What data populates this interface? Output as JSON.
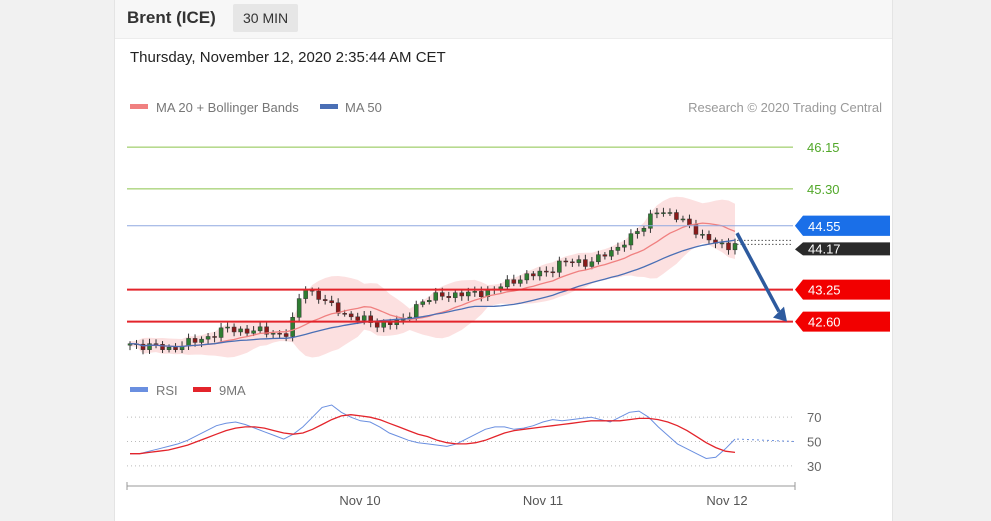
{
  "header": {
    "instrument": "Brent (ICE)",
    "timeframe": "30 MIN"
  },
  "datetime": "Thursday, November 12, 2020 2:35:44 AM CET",
  "legend": {
    "ma20": "MA 20 + Bollinger Bands",
    "ma50": "MA 50",
    "credit": "Research © 2020 Trading Central"
  },
  "colors": {
    "ma20": "#f08080",
    "ma50": "#4a6fb5",
    "bands": "#fbd5d5",
    "resistance": "#8bc34a",
    "resistance_text": "#52a82a",
    "pivot": "#8fa8e0",
    "pivot_tag": "#1a6fe8",
    "support": "#e3242b",
    "support_tag": "#f20000",
    "last_tag": "#2a2a2a",
    "arrow": "#2d5a9e",
    "rsi": "#6a8fe0",
    "rsi_ma": "#e3242b"
  },
  "chart_data": [
    {
      "type": "candlestick",
      "x_axis": [
        "Nov 10",
        "Nov 11",
        "Nov 12"
      ],
      "ylim": [
        41.9,
        46.6
      ],
      "levels": [
        {
          "value": 46.15,
          "label": "46.15",
          "kind": "resistance"
        },
        {
          "value": 45.3,
          "label": "45.30",
          "kind": "resistance"
        },
        {
          "value": 44.55,
          "label": "44.55",
          "kind": "pivot"
        },
        {
          "value": 43.25,
          "label": "43.25",
          "kind": "support"
        },
        {
          "value": 42.6,
          "label": "42.60",
          "kind": "support"
        }
      ],
      "last_price": {
        "value": 44.17,
        "label": "44.17"
      },
      "arrow": {
        "from": 44.4,
        "to": 42.6,
        "direction": "down"
      },
      "series": [
        {
          "name": "MA 20 + Bollinger Bands",
          "kind": "ma20"
        },
        {
          "name": "MA 50",
          "kind": "ma50"
        }
      ],
      "close_path": [
        [
          0,
          42.15
        ],
        [
          6,
          42.05
        ],
        [
          10,
          42.2
        ],
        [
          15,
          42.45
        ],
        [
          20,
          42.4
        ],
        [
          24,
          42.35
        ],
        [
          25,
          42.6
        ],
        [
          26,
          43.05
        ],
        [
          27,
          43.3
        ],
        [
          28,
          43.2
        ],
        [
          29,
          43.1
        ],
        [
          30,
          43.0
        ],
        [
          31,
          42.9
        ],
        [
          34,
          42.7
        ],
        [
          38,
          42.55
        ],
        [
          42,
          42.6
        ],
        [
          44,
          42.95
        ],
        [
          48,
          43.15
        ],
        [
          52,
          43.15
        ],
        [
          56,
          43.25
        ],
        [
          60,
          43.5
        ],
        [
          64,
          43.6
        ],
        [
          66,
          43.8
        ],
        [
          70,
          43.8
        ],
        [
          74,
          44.0
        ],
        [
          76,
          44.25
        ],
        [
          79,
          44.5
        ],
        [
          80,
          44.75
        ],
        [
          81,
          44.9
        ],
        [
          83,
          44.75
        ],
        [
          86,
          44.6
        ],
        [
          88,
          44.3
        ],
        [
          90,
          44.2
        ],
        [
          92,
          44.15
        ],
        [
          93,
          44.17
        ]
      ],
      "bars": 94
    },
    {
      "type": "line",
      "title": "",
      "series": [
        {
          "name": "RSI",
          "kind": "rsi",
          "values": [
            40,
            40,
            42,
            44,
            46,
            48,
            51,
            55,
            59,
            63,
            65,
            66,
            64,
            61,
            58,
            55,
            52,
            56,
            62,
            70,
            78,
            80,
            74,
            70,
            67,
            66,
            62,
            57,
            54,
            51,
            49,
            48,
            47,
            46,
            48,
            52,
            56,
            60,
            62,
            62,
            60,
            61,
            63,
            66,
            68,
            67,
            68,
            69,
            70,
            68,
            66,
            70,
            74,
            75,
            70,
            62,
            55,
            48,
            44,
            40,
            36,
            37,
            44,
            52
          ]
        },
        {
          "name": "9MA",
          "kind": "rsi_ma",
          "values": [
            40,
            40,
            41,
            42,
            43,
            45,
            47,
            50,
            53,
            56,
            59,
            61,
            62,
            62,
            61,
            59,
            57,
            56,
            57,
            60,
            64,
            68,
            71,
            72,
            71,
            70,
            68,
            65,
            62,
            59,
            56,
            54,
            51,
            49,
            48,
            48,
            49,
            51,
            54,
            57,
            59,
            60,
            61,
            62,
            63,
            64,
            65,
            66,
            67,
            67,
            67,
            67,
            68,
            69,
            69,
            68,
            66,
            63,
            59,
            54,
            49,
            45,
            42,
            41
          ]
        }
      ],
      "yticks": [
        70,
        50,
        30
      ],
      "ylim": [
        20,
        80
      ]
    }
  ],
  "rsi_legend": {
    "rsi": "RSI",
    "ma": "9MA"
  }
}
